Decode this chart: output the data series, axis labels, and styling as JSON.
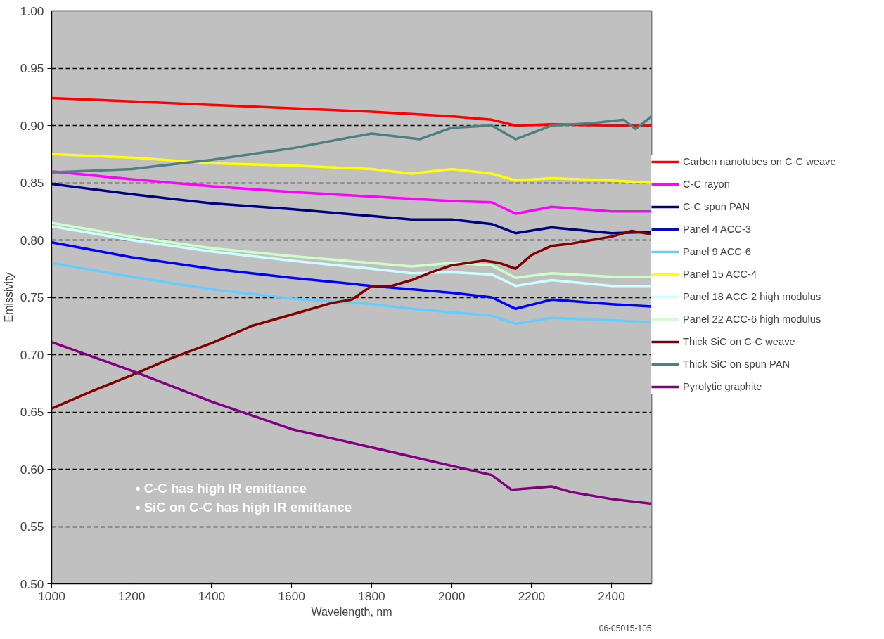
{
  "chart_data": {
    "type": "line",
    "xlabel": "Wavelength, nm",
    "ylabel": "Emissivity",
    "xlim": [
      1000,
      2500
    ],
    "xticks": [
      1000,
      1200,
      1400,
      1600,
      1800,
      2000,
      2200,
      2400
    ],
    "ylim": [
      0.5,
      1.0
    ],
    "yticks": [
      {
        "value": 0.5,
        "label": "0.50"
      },
      {
        "value": 0.55,
        "label": "0.55"
      },
      {
        "value": 0.6,
        "label": "0.60"
      },
      {
        "value": 0.65,
        "label": "0.65"
      },
      {
        "value": 0.7,
        "label": "0.70"
      },
      {
        "value": 0.75,
        "label": "0.75"
      },
      {
        "value": 0.8,
        "label": "0.80"
      },
      {
        "value": 0.85,
        "label": "0.85"
      },
      {
        "value": 0.9,
        "label": "0.90"
      },
      {
        "value": 0.95,
        "label": "0.95"
      },
      {
        "value": 1.0,
        "label": "1.00"
      }
    ],
    "x": [
      1000,
      1200,
      1400,
      1600,
      1800,
      1900,
      2000,
      2100,
      2160,
      2250,
      2400,
      2500
    ],
    "grid": "y",
    "legend": "right",
    "marker": "none",
    "line_style": "solid",
    "annotations": [
      "• C-C has high IR emittance",
      "• SiC on C-C has high IR emittance",
      "06-05015-105"
    ],
    "series": [
      {
        "name": "Carbon nanotubes on C-C weave",
        "color": "#ff0000",
        "values": [
          0.924,
          0.921,
          0.918,
          0.915,
          0.912,
          0.91,
          0.908,
          0.905,
          0.9,
          0.901,
          0.9,
          0.9
        ]
      },
      {
        "name": "C-C rayon",
        "color": "#ff00ff",
        "values": [
          0.86,
          0.853,
          0.847,
          0.842,
          0.838,
          0.836,
          0.834,
          0.833,
          0.823,
          0.829,
          0.825,
          0.825
        ]
      },
      {
        "name": "C-C spun PAN",
        "color": "#000080",
        "values": [
          0.849,
          0.84,
          0.832,
          0.827,
          0.821,
          0.818,
          0.818,
          0.814,
          0.806,
          0.811,
          0.806,
          0.807
        ]
      },
      {
        "name": "Panel 4 ACC-3",
        "color": "#0000ff",
        "values": [
          0.798,
          0.785,
          0.775,
          0.767,
          0.76,
          0.757,
          0.754,
          0.75,
          0.74,
          0.748,
          0.744,
          0.742
        ]
      },
      {
        "name": "Panel 9 ACC-6",
        "color": "#66ccff",
        "values": [
          0.78,
          0.768,
          0.757,
          0.749,
          0.744,
          0.74,
          0.737,
          0.734,
          0.727,
          0.732,
          0.73,
          0.728
        ]
      },
      {
        "name": "Panel 15 ACC-4",
        "color": "#ffff00",
        "values": [
          0.875,
          0.872,
          0.867,
          0.865,
          0.862,
          0.858,
          0.862,
          0.858,
          0.852,
          0.854,
          0.852,
          0.85
        ]
      },
      {
        "name": "Panel 18 ACC-2 high modulus",
        "color": "#ccffff",
        "values": [
          0.812,
          0.8,
          0.79,
          0.782,
          0.775,
          0.771,
          0.772,
          0.77,
          0.76,
          0.765,
          0.76,
          0.76
        ]
      },
      {
        "name": "Panel 22 ACC-6 high modulus",
        "color": "#ccffcc",
        "values": [
          0.815,
          0.803,
          0.793,
          0.786,
          0.78,
          0.777,
          0.78,
          0.778,
          0.767,
          0.771,
          0.768,
          0.768
        ]
      },
      {
        "name": "Thick SiC on C-C weave",
        "color": "#800000",
        "x": [
          1000,
          1100,
          1200,
          1300,
          1400,
          1500,
          1600,
          1700,
          1750,
          1800,
          1850,
          1900,
          1950,
          2000,
          2080,
          2120,
          2160,
          2200,
          2250,
          2300,
          2400,
          2450,
          2500
        ],
        "values": [
          0.653,
          0.668,
          0.682,
          0.697,
          0.71,
          0.725,
          0.735,
          0.745,
          0.748,
          0.76,
          0.76,
          0.765,
          0.772,
          0.778,
          0.782,
          0.78,
          0.775,
          0.787,
          0.795,
          0.797,
          0.803,
          0.808,
          0.805
        ]
      },
      {
        "name": "Thick SiC on spun PAN",
        "color": "#4f8080",
        "x": [
          1000,
          1200,
          1400,
          1600,
          1800,
          1920,
          2000,
          2100,
          2160,
          2250,
          2350,
          2430,
          2460,
          2500
        ],
        "values": [
          0.859,
          0.862,
          0.87,
          0.88,
          0.893,
          0.888,
          0.898,
          0.9,
          0.888,
          0.9,
          0.902,
          0.905,
          0.897,
          0.908
        ]
      },
      {
        "name": "Pyrolytic graphite",
        "color": "#800080",
        "x": [
          1000,
          1200,
          1400,
          1600,
          1800,
          1900,
          2000,
          2100,
          2150,
          2250,
          2300,
          2400,
          2500
        ],
        "values": [
          0.711,
          0.686,
          0.659,
          0.635,
          0.619,
          0.611,
          0.603,
          0.595,
          0.582,
          0.585,
          0.58,
          0.574,
          0.57
        ]
      }
    ]
  }
}
